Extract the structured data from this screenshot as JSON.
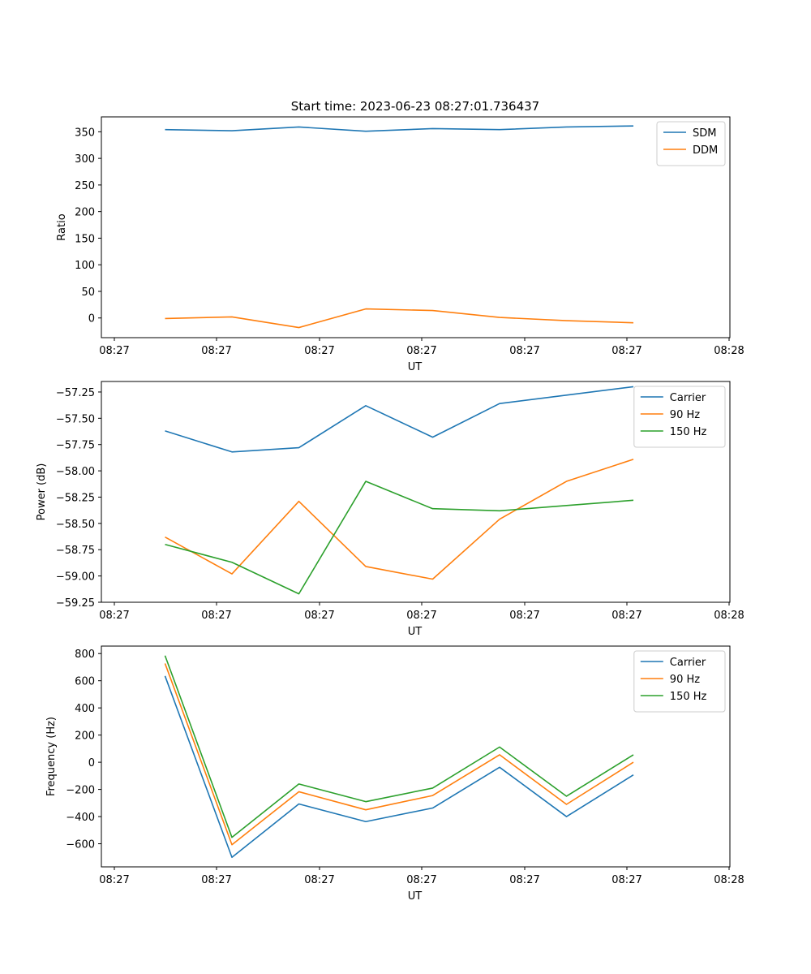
{
  "figure": {
    "title": "Start time: 2023-06-23 08:27:01.736437"
  },
  "chart_data": [
    {
      "type": "line",
      "xlabel": "UT",
      "ylabel": "Ratio",
      "x_tick_labels": [
        "08:27",
        "08:27",
        "08:27",
        "08:27",
        "08:27",
        "08:27",
        "08:28"
      ],
      "ylim": [
        -37,
        378
      ],
      "y_ticks": [
        0,
        50,
        100,
        150,
        200,
        250,
        300,
        350
      ],
      "legend_position": "top-right",
      "series": [
        {
          "name": "SDM",
          "color": "#1f77b4",
          "values": [
            354,
            352,
            359,
            351,
            356,
            354,
            359,
            361
          ]
        },
        {
          "name": "DDM",
          "color": "#ff7f0e",
          "values": [
            -1,
            2,
            -18,
            17,
            14,
            1,
            -5,
            -9
          ]
        }
      ]
    },
    {
      "type": "line",
      "xlabel": "UT",
      "ylabel": "Power (dB)",
      "x_tick_labels": [
        "08:27",
        "08:27",
        "08:27",
        "08:27",
        "08:27",
        "08:27",
        "08:28"
      ],
      "ylim": [
        -59.25,
        -57.15
      ],
      "y_ticks": [
        -57.25,
        -57.5,
        -57.75,
        -58.0,
        -58.25,
        -58.5,
        -58.75,
        -59.0,
        -59.25
      ],
      "y_tick_labels": [
        "−57.25",
        "−57.50",
        "−57.75",
        "−58.00",
        "−58.25",
        "−58.50",
        "−58.75",
        "−59.00",
        "−59.25"
      ],
      "legend_position": "top-right",
      "series": [
        {
          "name": "Carrier",
          "color": "#1f77b4",
          "values": [
            -57.62,
            -57.82,
            -57.78,
            -57.38,
            -57.68,
            -57.36,
            -57.28,
            -57.2
          ]
        },
        {
          "name": "90 Hz",
          "color": "#ff7f0e",
          "values": [
            -58.63,
            -58.98,
            -58.29,
            -58.91,
            -59.03,
            -58.46,
            -58.1,
            -57.89
          ]
        },
        {
          "name": "150 Hz",
          "color": "#2ca02c",
          "values": [
            -58.7,
            -58.87,
            -59.17,
            -58.1,
            -58.36,
            -58.38,
            -58.33,
            -58.28
          ]
        }
      ]
    },
    {
      "type": "line",
      "xlabel": "UT",
      "ylabel": "Frequency (Hz)",
      "x_tick_labels": [
        "08:27",
        "08:27",
        "08:27",
        "08:27",
        "08:27",
        "08:27",
        "08:28"
      ],
      "ylim": [
        -770,
        855
      ],
      "y_ticks": [
        -600,
        -400,
        -200,
        0,
        200,
        400,
        600,
        800
      ],
      "y_tick_labels": [
        "−600",
        "−400",
        "−200",
        "0",
        "200",
        "400",
        "600",
        "800"
      ],
      "legend_position": "top-right",
      "series": [
        {
          "name": "Carrier",
          "color": "#1f77b4",
          "values": [
            635,
            -700,
            -307,
            -437,
            -337,
            -37,
            -400,
            -93
          ]
        },
        {
          "name": "90 Hz",
          "color": "#ff7f0e",
          "values": [
            727,
            -607,
            -217,
            -350,
            -245,
            55,
            -310,
            0
          ]
        },
        {
          "name": "150 Hz",
          "color": "#2ca02c",
          "values": [
            785,
            -553,
            -160,
            -290,
            -190,
            112,
            -250,
            55
          ]
        }
      ]
    }
  ]
}
